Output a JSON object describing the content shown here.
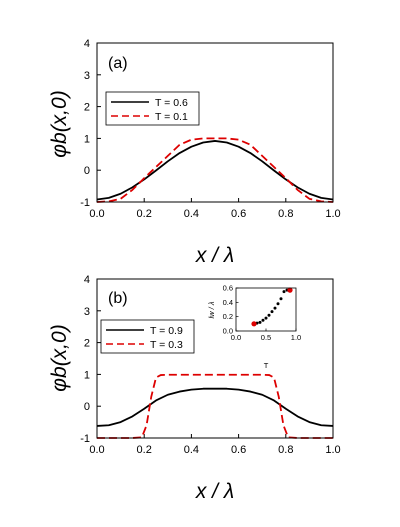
{
  "chart_data": [
    {
      "type": "line",
      "panel_label": "(a)",
      "xlabel": "x / λ",
      "ylabel": "φb(x,0)",
      "xlim": [
        0.0,
        1.0
      ],
      "ylim": [
        -1,
        4
      ],
      "x_ticks": [
        "0.0",
        "0.2",
        "0.4",
        "0.6",
        "0.8",
        "1.0"
      ],
      "y_ticks": [
        "-1",
        "0",
        "1",
        "2",
        "3",
        "4"
      ],
      "legend_position": "middle-left",
      "series": [
        {
          "name": "T = 0.6",
          "color": "#000000",
          "style": "solid",
          "x": [
            0.0,
            0.05,
            0.1,
            0.15,
            0.2,
            0.25,
            0.3,
            0.35,
            0.4,
            0.45,
            0.5,
            0.55,
            0.6,
            0.65,
            0.7,
            0.75,
            0.8,
            0.85,
            0.9,
            0.95,
            1.0
          ],
          "y": [
            -0.92,
            -0.87,
            -0.74,
            -0.54,
            -0.29,
            -0.01,
            0.28,
            0.54,
            0.74,
            0.87,
            0.92,
            0.87,
            0.74,
            0.54,
            0.28,
            -0.01,
            -0.29,
            -0.54,
            -0.74,
            -0.87,
            -0.92
          ]
        },
        {
          "name": "T = 0.1",
          "color": "#dd0000",
          "style": "dashed",
          "x": [
            0.0,
            0.05,
            0.1,
            0.15,
            0.2,
            0.25,
            0.3,
            0.35,
            0.4,
            0.45,
            0.5,
            0.55,
            0.6,
            0.65,
            0.7,
            0.75,
            0.8,
            0.85,
            0.9,
            0.95,
            1.0
          ],
          "y": [
            -1.0,
            -0.98,
            -0.9,
            -0.62,
            -0.25,
            0.1,
            0.45,
            0.8,
            0.96,
            1.0,
            1.0,
            1.0,
            0.96,
            0.8,
            0.45,
            0.1,
            -0.25,
            -0.62,
            -0.9,
            -0.98,
            -1.0
          ]
        }
      ]
    },
    {
      "type": "line",
      "panel_label": "(b)",
      "xlabel": "x / λ",
      "ylabel": "φb(x,0)",
      "xlim": [
        0.0,
        1.0
      ],
      "ylim": [
        -1,
        4
      ],
      "x_ticks": [
        "0.0",
        "0.2",
        "0.4",
        "0.6",
        "0.8",
        "1.0"
      ],
      "y_ticks": [
        "-1",
        "0",
        "1",
        "2",
        "3",
        "4"
      ],
      "legend_position": "middle-left",
      "series": [
        {
          "name": "T = 0.9",
          "color": "#000000",
          "style": "solid",
          "x": [
            0.0,
            0.05,
            0.1,
            0.15,
            0.2,
            0.25,
            0.3,
            0.35,
            0.4,
            0.45,
            0.5,
            0.55,
            0.6,
            0.65,
            0.7,
            0.75,
            0.8,
            0.85,
            0.9,
            0.95,
            1.0
          ],
          "y": [
            -0.62,
            -0.6,
            -0.5,
            -0.32,
            -0.08,
            0.18,
            0.36,
            0.46,
            0.52,
            0.55,
            0.55,
            0.55,
            0.52,
            0.46,
            0.36,
            0.18,
            -0.08,
            -0.32,
            -0.5,
            -0.6,
            -0.62
          ]
        },
        {
          "name": "T = 0.3",
          "color": "#dd0000",
          "style": "dashed",
          "x": [
            0.0,
            0.05,
            0.1,
            0.15,
            0.19,
            0.21,
            0.23,
            0.25,
            0.27,
            0.3,
            0.4,
            0.5,
            0.6,
            0.7,
            0.73,
            0.75,
            0.77,
            0.79,
            0.81,
            0.85,
            0.9,
            0.95,
            1.0
          ],
          "y": [
            -1.0,
            -1.0,
            -1.0,
            -1.0,
            -0.98,
            -0.6,
            0.3,
            0.9,
            0.98,
            0.99,
            0.99,
            0.99,
            0.99,
            0.99,
            0.98,
            0.9,
            0.3,
            -0.6,
            -0.98,
            -1.0,
            -1.0,
            -1.0,
            -1.0
          ]
        }
      ],
      "inset": {
        "type": "scatter",
        "xlabel": "T",
        "ylabel": "lw / λ",
        "xlim": [
          0.0,
          1.0
        ],
        "ylim": [
          0.0,
          0.6
        ],
        "x_ticks": [
          "0.0",
          "0.5",
          "1.0"
        ],
        "y_ticks": [
          "0.0",
          "0.2",
          "0.4",
          "0.6"
        ],
        "points": {
          "x": [
            0.3,
            0.35,
            0.4,
            0.45,
            0.5,
            0.55,
            0.6,
            0.65,
            0.7,
            0.75,
            0.8,
            0.85,
            0.9
          ],
          "y": [
            0.1,
            0.11,
            0.12,
            0.15,
            0.18,
            0.22,
            0.27,
            0.32,
            0.38,
            0.45,
            0.55,
            0.57,
            0.57
          ]
        },
        "highlighted_points": {
          "x": [
            0.3,
            0.9
          ],
          "y": [
            0.1,
            0.57
          ]
        },
        "point_color": "#000000",
        "highlight_color": "#dd0000"
      }
    }
  ]
}
